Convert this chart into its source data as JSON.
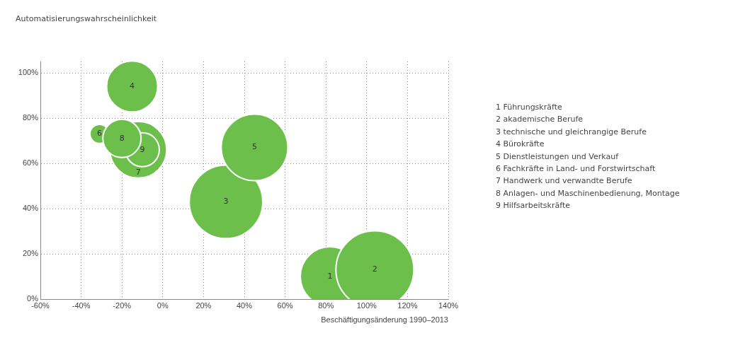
{
  "chart_data": {
    "type": "bubble",
    "xlabel": "Beschäftigungsänderung 1990–2013",
    "ylabel": "Automatisierungswahrscheinlichkeit",
    "series": [
      {
        "name": "1",
        "color": "#6cbf4a",
        "x": [
          82
        ],
        "values": [
          10
        ],
        "sizes": [
          0.58
        ]
      },
      {
        "name": "2",
        "color": "#6cbf4a",
        "x": [
          104
        ],
        "values": [
          13
        ],
        "sizes": [
          1
        ]
      },
      {
        "name": "3",
        "color": "#6cbf4a",
        "x": [
          31
        ],
        "values": [
          43
        ],
        "sizes": [
          0.89
        ]
      },
      {
        "name": "4",
        "color": "#6cbf4a",
        "x": [
          -15
        ],
        "values": [
          94
        ],
        "sizes": [
          0.43
        ]
      },
      {
        "name": "5",
        "color": "#6cbf4a",
        "x": [
          45
        ],
        "values": [
          67
        ],
        "sizes": [
          0.73
        ]
      },
      {
        "name": "6",
        "color": "#6cbf4a",
        "x": [
          -31
        ],
        "values": [
          73
        ],
        "sizes": [
          0.06
        ]
      },
      {
        "name": "7",
        "color": "#6cbf4a",
        "x": [
          -12
        ],
        "values": [
          66
        ],
        "sizes": [
          0.53
        ]
      },
      {
        "name": "9",
        "color": "#6cbf4a",
        "x": [
          -10
        ],
        "values": [
          66
        ],
        "sizes": [
          0.19
        ]
      },
      {
        "name": "8",
        "color": "#6cbf4a",
        "x": [
          -20
        ],
        "values": [
          71
        ],
        "sizes": [
          0.24
        ]
      }
    ],
    "xlim": [
      -60,
      140
    ],
    "xticks": [
      {
        "value": -60,
        "label": "-60%"
      },
      {
        "value": -40,
        "label": "-40%"
      },
      {
        "value": -20,
        "label": "-20%"
      },
      {
        "value": 0,
        "label": "0%"
      },
      {
        "value": 20,
        "label": "20%"
      },
      {
        "value": 40,
        "label": "40%"
      },
      {
        "value": 60,
        "label": "60%"
      },
      {
        "value": 80,
        "label": "80%"
      },
      {
        "value": 100,
        "label": "100%"
      },
      {
        "value": 120,
        "label": "120%"
      },
      {
        "value": 140,
        "label": "140%"
      }
    ],
    "ylim": [
      0,
      105
    ],
    "yticks": [
      {
        "value": 0,
        "label": "0%"
      },
      {
        "value": 20,
        "label": "20%"
      },
      {
        "value": 40,
        "label": "40%"
      },
      {
        "value": 60,
        "label": "60%"
      },
      {
        "value": 80,
        "label": "80%"
      },
      {
        "value": 100,
        "label": "100%"
      }
    ],
    "grid": true,
    "legend": false,
    "annotations": [
      "1 Führungskräfte",
      "2 akademische Berufe",
      "3 technische und gleichrangige Berufe",
      "4 Bürokräfte",
      "5 Dienstleistungen und Verkauf",
      "6 Fachkräfte in Land- und Forstwirtschaft",
      "7 Handwerk und verwandte Berufe",
      "8 Anlagen- und Maschinenbedienung, Montage",
      "9 Hilfsarbeitskräfte"
    ]
  }
}
